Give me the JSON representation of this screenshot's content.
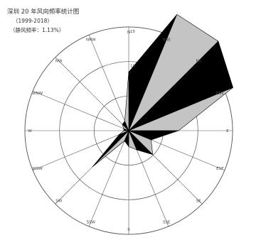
{
  "title": {
    "line1": "深圳 20 年风向频率统计图",
    "line2": "（1999-2018）",
    "line3": "（静风频率：1.13%）"
  },
  "chart_data": {
    "type": "radar",
    "title": "深圳 20 年风向频率统计图",
    "directions": [
      "N",
      "NNE",
      "NE",
      "ENE",
      "E",
      "ESE",
      "SE",
      "SSE",
      "S",
      "SSW",
      "SW",
      "WSW",
      "W",
      "WNW",
      "NW",
      "NNW"
    ],
    "ring_values": [
      5,
      10,
      15
    ],
    "ring_labels": [
      "15",
      "10"
    ],
    "rmax": 15,
    "series": [
      {
        "name": "",
        "values": [
          8.5,
          18.2,
          18.3,
          16.3,
          7.2,
          3.5,
          4.9,
          3.0,
          2.3,
          1.6,
          7.4,
          1.5,
          0.7,
          0.8,
          1.3,
          1.5
        ]
      }
    ],
    "grid": true,
    "colors": {
      "fill_light": "#c4c4c4",
      "fill_dark": "#000000",
      "grid": "#555555"
    }
  }
}
